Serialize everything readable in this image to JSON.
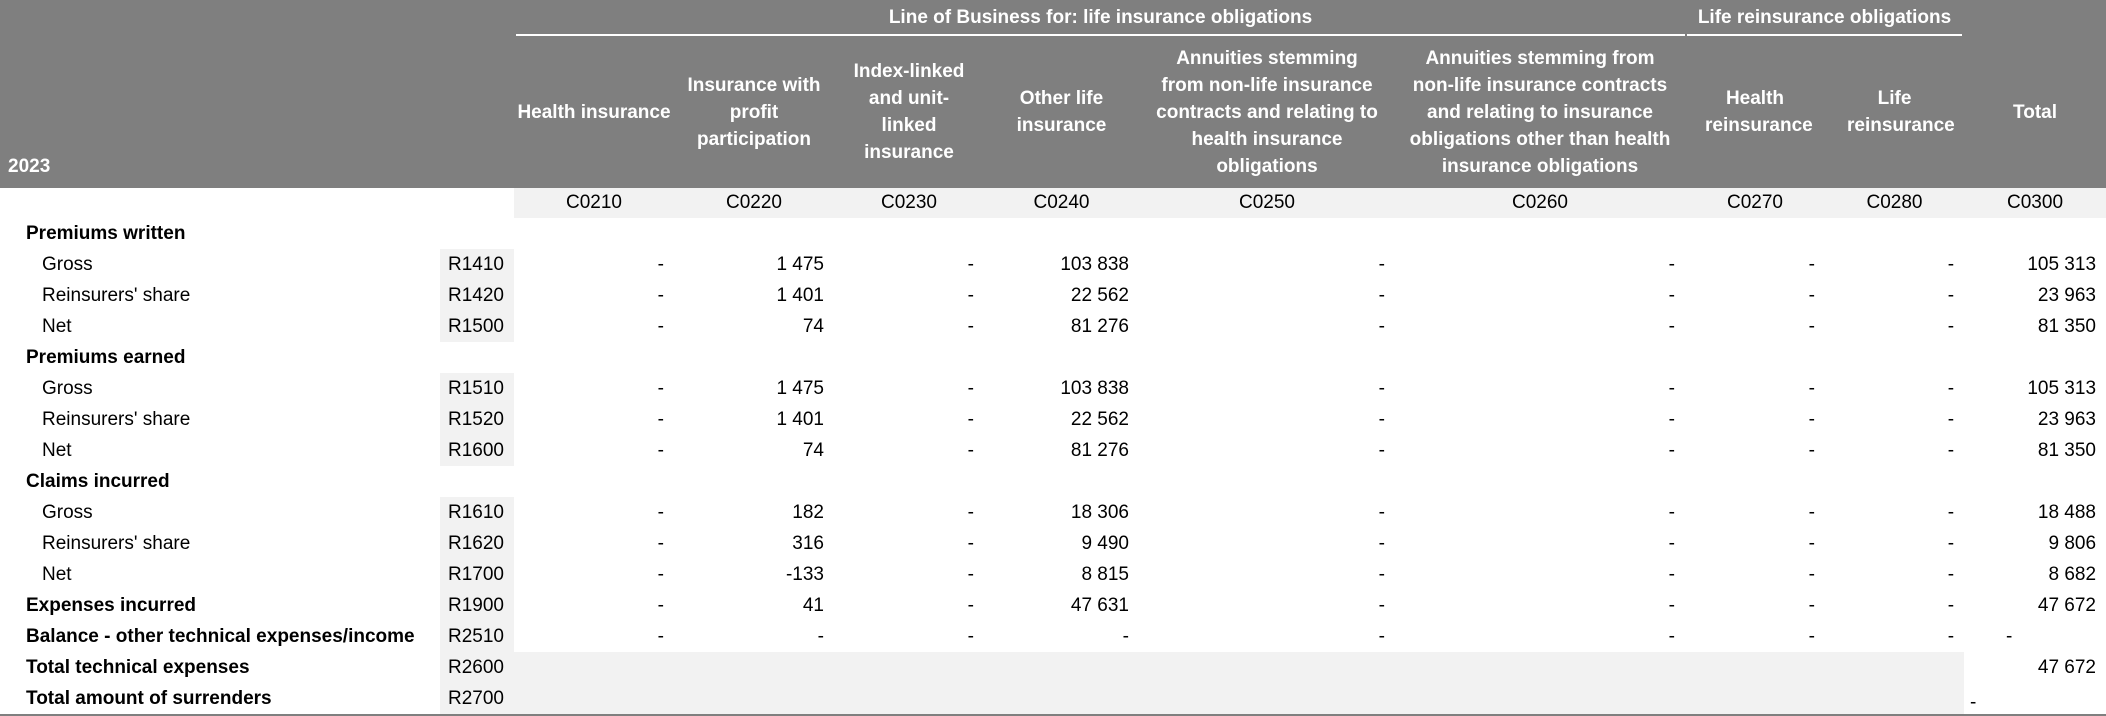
{
  "header": {
    "year": "2023",
    "group_life": "Line of Business for: life insurance obligations",
    "group_reins": "Life reinsurance obligations",
    "columns": [
      "Health insurance",
      "Insurance with profit participation",
      "Index-linked and unit-linked insurance",
      "Other life insurance",
      "Annuities stemming from non-life insurance contracts and relating to health insurance obligations",
      "Annuities stemming from non-life insurance contracts and relating to insurance obligations other than health insurance obligations",
      "Health reinsurance",
      "Life reinsurance",
      "Total"
    ],
    "codes": [
      "C0210",
      "C0220",
      "C0230",
      "C0240",
      "C0250",
      "C0260",
      "C0270",
      "C0280",
      "C0300"
    ]
  },
  "rows": [
    {
      "label": "Premiums written",
      "code": "",
      "values": []
    },
    {
      "label": "Gross",
      "code": "R1410",
      "values": [
        "-",
        "1 475",
        "-",
        "103 838",
        "-",
        "-",
        "-",
        "-",
        "105 313"
      ]
    },
    {
      "label": "Reinsurers' share",
      "code": "R1420",
      "values": [
        "-",
        "1 401",
        "-",
        "22 562",
        "-",
        "-",
        "-",
        "-",
        "23 963"
      ]
    },
    {
      "label": "Net",
      "code": "R1500",
      "values": [
        "-",
        "74",
        "-",
        "81 276",
        "-",
        "-",
        "-",
        "-",
        "81 350"
      ]
    },
    {
      "label": "Premiums earned",
      "code": "",
      "values": []
    },
    {
      "label": "Gross",
      "code": "R1510",
      "values": [
        "-",
        "1 475",
        "-",
        "103 838",
        "-",
        "-",
        "-",
        "-",
        "105 313"
      ]
    },
    {
      "label": "Reinsurers' share",
      "code": "R1520",
      "values": [
        "-",
        "1 401",
        "-",
        "22 562",
        "-",
        "-",
        "-",
        "-",
        "23 963"
      ]
    },
    {
      "label": "Net",
      "code": "R1600",
      "values": [
        "-",
        "74",
        "-",
        "81 276",
        "-",
        "-",
        "-",
        "-",
        "81 350"
      ]
    },
    {
      "label": "Claims incurred",
      "code": "",
      "values": []
    },
    {
      "label": "Gross",
      "code": "R1610",
      "values": [
        "-",
        "182",
        "-",
        "18 306",
        "-",
        "-",
        "-",
        "-",
        "18 488"
      ]
    },
    {
      "label": "Reinsurers' share",
      "code": "R1620",
      "values": [
        "-",
        "316",
        "-",
        "9 490",
        "-",
        "-",
        "-",
        "-",
        "9 806"
      ]
    },
    {
      "label": "Net",
      "code": "R1700",
      "values": [
        "-",
        "-133",
        "-",
        "8 815",
        "-",
        "-",
        "-",
        "-",
        "8 682"
      ]
    },
    {
      "label": "Expenses incurred",
      "code": "R1900",
      "values": [
        "-",
        "41",
        "-",
        "47 631",
        "-",
        "-",
        "-",
        "-",
        "47 672"
      ]
    },
    {
      "label": "Balance - other technical expenses/income",
      "code": "R2510",
      "values": [
        "-",
        "-",
        "-",
        "-",
        "-",
        "-",
        "-",
        "-",
        "-"
      ]
    },
    {
      "label": "Total technical expenses",
      "code": "R2600",
      "values": [
        "",
        "",
        "",
        "",
        "",
        "",
        "",
        "",
        "47 672"
      ]
    },
    {
      "label": "Total amount of surrenders",
      "code": "R2700",
      "values": [
        "",
        "",
        "",
        "",
        "",
        "",
        "",
        "",
        "-"
      ]
    }
  ]
}
